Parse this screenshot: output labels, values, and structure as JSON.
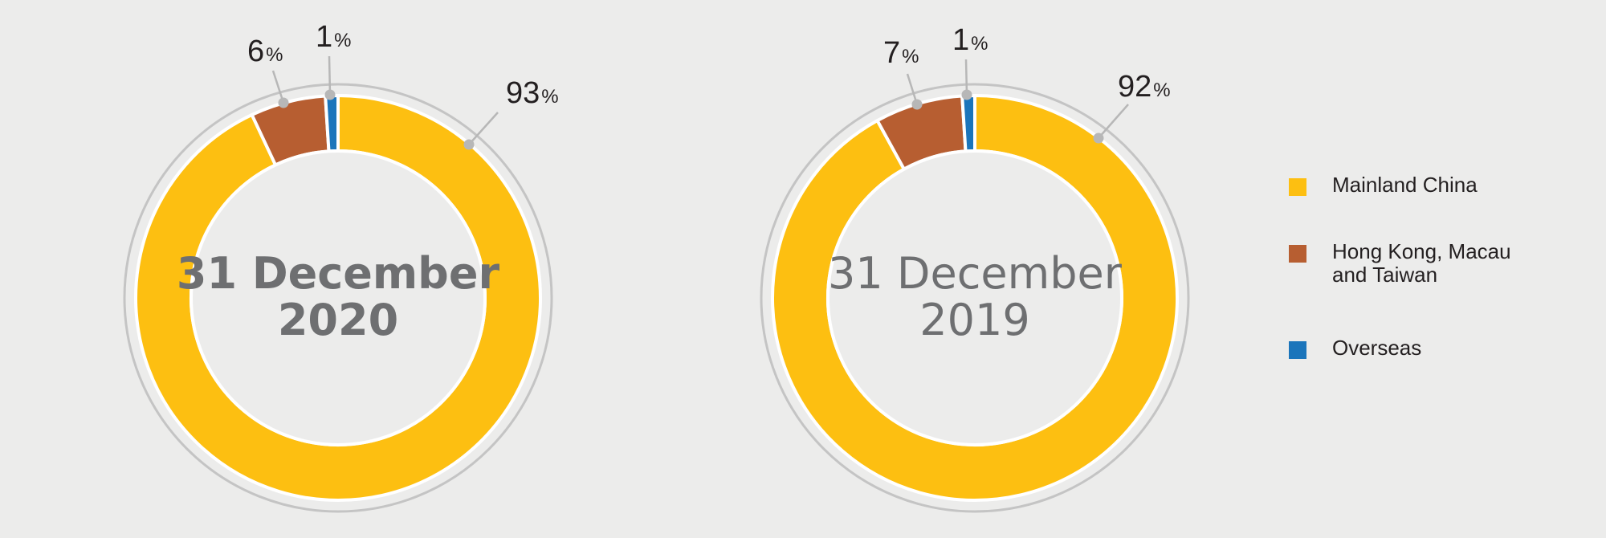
{
  "chart_data": [
    {
      "type": "donut",
      "center_label": [
        "31 December",
        "2020"
      ],
      "center_bold": true,
      "slices": [
        {
          "name": "Mainland China",
          "value": 93,
          "label": "93"
        },
        {
          "name": "Hong Kong, Macau and Taiwan",
          "value": 6,
          "label": "6"
        },
        {
          "name": "Overseas",
          "value": 1,
          "label": "1"
        }
      ]
    },
    {
      "type": "donut",
      "center_label": [
        "31 December",
        "2019"
      ],
      "center_bold": false,
      "slices": [
        {
          "name": "Mainland China",
          "value": 92,
          "label": "92"
        },
        {
          "name": "Hong Kong, Macau and Taiwan",
          "value": 7,
          "label": "7"
        },
        {
          "name": "Overseas",
          "value": 1,
          "label": "1"
        }
      ]
    }
  ],
  "percent_sign": "%",
  "legend": {
    "placement": "right",
    "items": [
      {
        "label": "Mainland China",
        "color": "#fdbf11"
      },
      {
        "label": "Hong Kong, Macau\nand Taiwan",
        "color": "#b75e31"
      },
      {
        "label": "Overseas",
        "color": "#1b75bb"
      }
    ]
  },
  "colors": {
    "mainland": "#fdbf11",
    "hk_macau_taiwan": "#b75e31",
    "overseas": "#1b75bb",
    "outer_ring": "#c4c4c4",
    "leader_line": "#b7b7b7",
    "center_text": "#6e6f71"
  }
}
